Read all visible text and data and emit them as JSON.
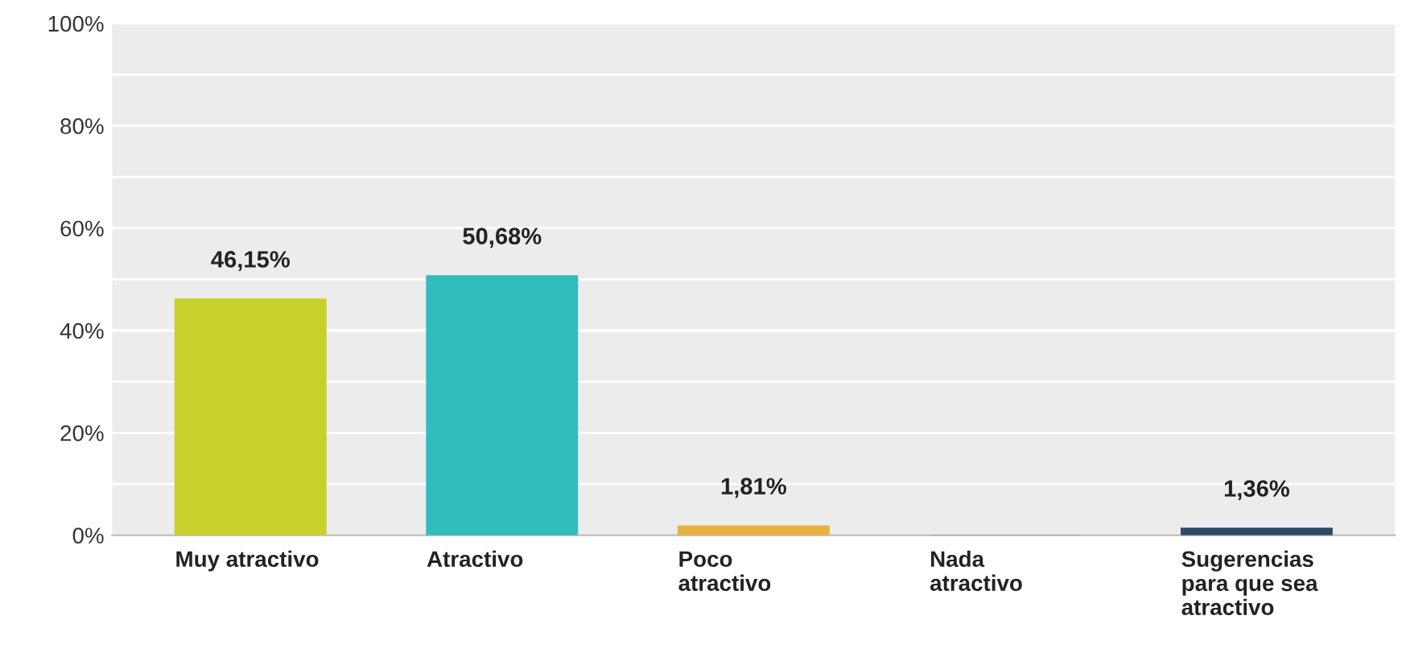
{
  "chart_data": {
    "type": "bar",
    "categories": [
      "Muy atractivo",
      "Atractivo",
      "Poco\natractivo",
      "Nada\natractivo",
      "Sugerencias\npara que sea\natractivo"
    ],
    "values": [
      46.15,
      50.68,
      1.81,
      0,
      1.36
    ],
    "colors": [
      "#c8d12c",
      "#33bcbc",
      "#e8b23e",
      "#999999",
      "#2e4a66"
    ],
    "value_labels": [
      "46,15%",
      "50,68%",
      "1,81%",
      null,
      "1,36%"
    ],
    "ylim": [
      0,
      100
    ],
    "yticks": [
      {
        "value": 0,
        "label": "0%"
      },
      {
        "value": 10,
        "label": null
      },
      {
        "value": 20,
        "label": "20%"
      },
      {
        "value": 30,
        "label": null
      },
      {
        "value": 40,
        "label": "40%"
      },
      {
        "value": 50,
        "label": null
      },
      {
        "value": 60,
        "label": "60%"
      },
      {
        "value": 70,
        "label": null
      },
      {
        "value": 80,
        "label": "80%"
      },
      {
        "value": 90,
        "label": null
      },
      {
        "value": 100,
        "label": "100%"
      }
    ],
    "grid": "y"
  }
}
